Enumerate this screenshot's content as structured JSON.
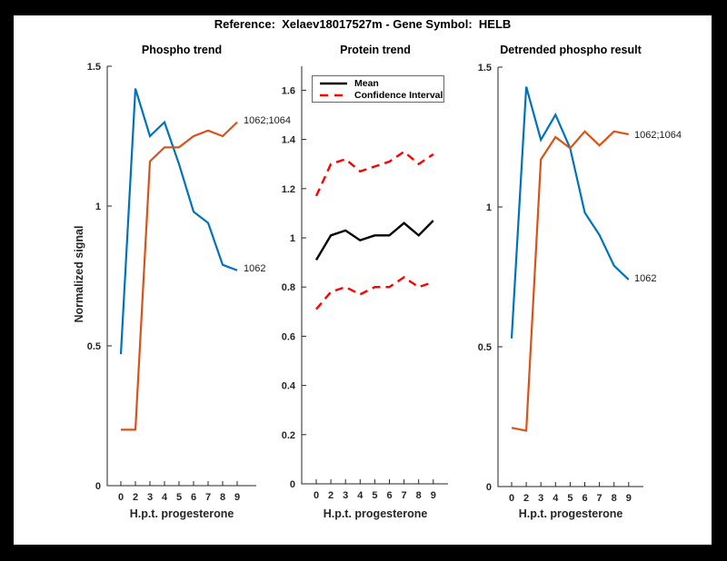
{
  "figure_title": "Reference:  Xelaev18017527m - Gene Symbol:  HELB",
  "colors": {
    "series_blue": "#0072BD",
    "series_orange": "#D95319",
    "mean_black": "#000000",
    "ci_red": "#FF0000",
    "axis": "#262626",
    "frame": "#000000",
    "figure_background": "#FFFFFF"
  },
  "chart_data": [
    {
      "type": "line",
      "title": "Phospho trend",
      "xlabel": "H.p.t. progesterone",
      "ylabel": "Normalized signal",
      "x_tick_labels": [
        "0",
        "2",
        "3",
        "4",
        "5",
        "6",
        "7",
        "8",
        "9"
      ],
      "y_tick_labels": [
        "0",
        "0.5",
        "1",
        "1.5"
      ],
      "y_tick_values": [
        0,
        0.5,
        1,
        1.5
      ],
      "ylim": [
        0,
        1.5
      ],
      "grid": false,
      "series": [
        {
          "name": "1062",
          "end_label": "1062",
          "color": "#0072BD",
          "style": "solid",
          "values": [
            0.47,
            1.42,
            1.25,
            1.3,
            1.15,
            0.98,
            0.94,
            0.79,
            0.77
          ]
        },
        {
          "name": "1062;1064",
          "end_label": "1062;1064",
          "color": "#D95319",
          "style": "solid",
          "values": [
            0.2,
            0.2,
            1.16,
            1.21,
            1.21,
            1.25,
            1.27,
            1.25,
            1.3
          ]
        }
      ]
    },
    {
      "type": "line",
      "title": "Protein trend",
      "xlabel": "H.p.t. progesterone",
      "ylabel": "",
      "x_tick_labels": [
        "0",
        "2",
        "3",
        "4",
        "5",
        "6",
        "7",
        "8",
        "9"
      ],
      "y_tick_labels": [
        "0",
        "0.2",
        "0.4",
        "0.6",
        "0.8",
        "1",
        "1.2",
        "1.4",
        "1.6"
      ],
      "y_tick_values": [
        0,
        0.2,
        0.4,
        0.6,
        0.8,
        1,
        1.2,
        1.4,
        1.6
      ],
      "ylim": [
        0,
        1.7
      ],
      "grid": false,
      "legend": {
        "position": "top-left",
        "entries": [
          {
            "label": "Mean",
            "style": "solid",
            "color": "#000000"
          },
          {
            "label": "Confidence Interval",
            "style": "dashed",
            "color": "#FF0000"
          }
        ]
      },
      "series": [
        {
          "name": "Mean",
          "color": "#000000",
          "style": "solid",
          "width": 2.4,
          "values": [
            0.91,
            1.01,
            1.03,
            0.99,
            1.01,
            1.01,
            1.06,
            1.01,
            1.07
          ]
        },
        {
          "name": "Confidence Interval upper",
          "color": "#FF0000",
          "style": "dashed",
          "width": 2.4,
          "values": [
            1.17,
            1.3,
            1.32,
            1.27,
            1.29,
            1.31,
            1.35,
            1.3,
            1.34
          ]
        },
        {
          "name": "Confidence Interval lower",
          "color": "#FF0000",
          "style": "dashed",
          "width": 2.4,
          "values": [
            0.71,
            0.78,
            0.8,
            0.77,
            0.8,
            0.8,
            0.84,
            0.8,
            0.82
          ]
        }
      ]
    },
    {
      "type": "line",
      "title": "Detrended phospho result",
      "xlabel": "H.p.t. progesterone",
      "ylabel": "",
      "x_tick_labels": [
        "0",
        "2",
        "3",
        "4",
        "5",
        "6",
        "7",
        "8",
        "9"
      ],
      "y_tick_labels": [
        "0",
        "0.5",
        "1",
        "1.5"
      ],
      "y_tick_values": [
        0,
        0.5,
        1,
        1.5
      ],
      "ylim": [
        0,
        1.5
      ],
      "grid": false,
      "series": [
        {
          "name": "1062",
          "end_label": "1062",
          "color": "#0072BD",
          "style": "solid",
          "values": [
            0.53,
            1.43,
            1.24,
            1.33,
            1.21,
            0.98,
            0.9,
            0.79,
            0.74
          ]
        },
        {
          "name": "1062;1064",
          "end_label": "1062;1064",
          "color": "#D95319",
          "style": "solid",
          "values": [
            0.21,
            0.2,
            1.17,
            1.25,
            1.21,
            1.27,
            1.22,
            1.27,
            1.26
          ]
        }
      ]
    }
  ]
}
